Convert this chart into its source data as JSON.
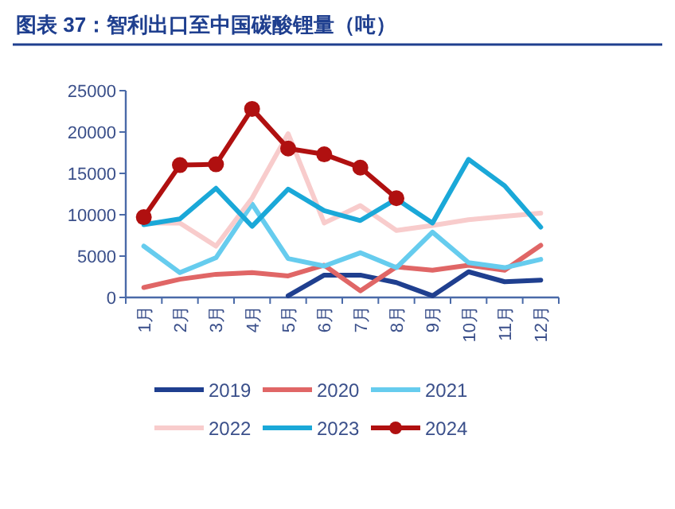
{
  "chart_data": {
    "type": "line",
    "title": "图表 37：智利出口至中国碳酸锂量（吨）",
    "categories": [
      "1月",
      "2月",
      "3月",
      "4月",
      "5月",
      "6月",
      "7月",
      "8月",
      "9月",
      "10月",
      "11月",
      "12月"
    ],
    "series": [
      {
        "name": "2019",
        "color": "#1f3f8f",
        "values": [
          null,
          null,
          null,
          null,
          200,
          2700,
          2700,
          1800,
          200,
          3100,
          1900,
          2100
        ]
      },
      {
        "name": "2020",
        "color": "#e06666",
        "values": [
          1200,
          2200,
          2800,
          3000,
          2600,
          3900,
          800,
          3700,
          3300,
          3900,
          3300,
          6300
        ]
      },
      {
        "name": "2021",
        "color": "#66ccee",
        "values": [
          6200,
          3000,
          4800,
          11300,
          4700,
          3800,
          5400,
          3600,
          7900,
          4200,
          3600,
          4600
        ]
      },
      {
        "name": "2022",
        "color": "#f8cccc",
        "values": [
          9000,
          9000,
          6200,
          12000,
          19800,
          9000,
          11100,
          8100,
          8700,
          9400,
          9800,
          10200
        ]
      },
      {
        "name": "2023",
        "color": "#1aa8d8",
        "values": [
          8800,
          9500,
          13200,
          8600,
          13100,
          10500,
          9300,
          11900,
          9000,
          16700,
          13500,
          8500
        ]
      },
      {
        "name": "2024",
        "color": "#b01010",
        "marker": "circle",
        "values": [
          9700,
          16000,
          16100,
          22800,
          18000,
          17300,
          15700,
          12000,
          null,
          null,
          null,
          null
        ]
      }
    ],
    "ylim": [
      0,
      25000
    ],
    "yticks": [
      0,
      5000,
      10000,
      15000,
      20000,
      25000
    ],
    "grid": false,
    "legend": "bottom"
  }
}
